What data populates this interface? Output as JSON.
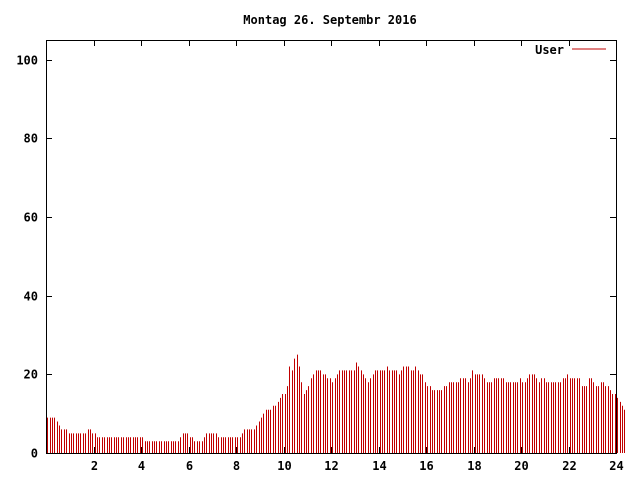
{
  "chart_data": {
    "type": "bar",
    "title": "Montag 26. Septembr 2016",
    "xlabel": "",
    "ylabel": "",
    "xlim": [
      0,
      24
    ],
    "ylim": [
      0,
      105
    ],
    "x_ticks": [
      2,
      4,
      6,
      8,
      10,
      12,
      14,
      16,
      18,
      20,
      22,
      24
    ],
    "y_ticks": [
      0,
      20,
      40,
      60,
      80,
      100
    ],
    "grid": false,
    "legend_position": "top-right",
    "series": [
      {
        "name": "User",
        "color": "#c00000",
        "start_hour": 0.05,
        "step_hours": 0.1,
        "values": [
          9,
          9,
          9,
          9,
          8,
          7,
          6,
          6,
          6,
          5,
          5,
          5,
          5,
          5,
          5,
          5,
          5,
          6,
          6,
          5,
          5,
          4,
          4,
          4,
          4,
          4,
          4,
          4,
          4,
          4,
          4,
          4,
          4,
          4,
          4,
          4,
          4,
          4,
          4,
          4,
          4,
          3,
          3,
          3,
          3,
          3,
          3,
          3,
          3,
          3,
          3,
          3,
          3,
          3,
          3,
          3,
          4,
          5,
          5,
          5,
          4,
          4,
          3,
          3,
          3,
          3,
          4,
          5,
          5,
          5,
          5,
          5,
          4,
          4,
          4,
          4,
          4,
          4,
          4,
          4,
          4,
          4,
          5,
          6,
          6,
          6,
          6,
          6,
          7,
          8,
          9,
          10,
          11,
          11,
          11,
          12,
          12,
          13,
          14,
          15,
          15,
          17,
          22,
          21,
          24,
          25,
          22,
          18,
          15,
          16,
          17,
          19,
          20,
          21,
          21,
          21,
          20,
          20,
          19,
          19,
          18,
          19,
          20,
          21,
          21,
          21,
          21,
          21,
          21,
          21,
          23,
          22,
          21,
          20,
          19,
          18,
          19,
          20,
          21,
          21,
          21,
          21,
          21,
          22,
          21,
          21,
          21,
          21,
          20,
          21,
          22,
          22,
          22,
          21,
          21,
          22,
          21,
          20,
          20,
          18,
          17,
          17,
          16,
          16,
          16,
          16,
          16,
          17,
          17,
          18,
          18,
          18,
          18,
          18,
          19,
          19,
          19,
          18,
          19,
          21,
          20,
          20,
          20,
          20,
          19,
          18,
          18,
          18,
          19,
          19,
          19,
          19,
          19,
          18,
          18,
          18,
          18,
          18,
          18,
          19,
          18,
          18,
          19,
          20,
          20,
          20,
          19,
          18,
          19,
          19,
          18,
          18,
          18,
          18,
          18,
          18,
          18,
          19,
          19,
          20,
          19,
          19,
          19,
          19,
          19,
          17,
          17,
          17,
          19,
          19,
          18,
          17,
          17,
          18,
          18,
          17,
          17,
          16,
          15,
          15,
          14,
          13,
          12,
          11
        ]
      }
    ]
  }
}
